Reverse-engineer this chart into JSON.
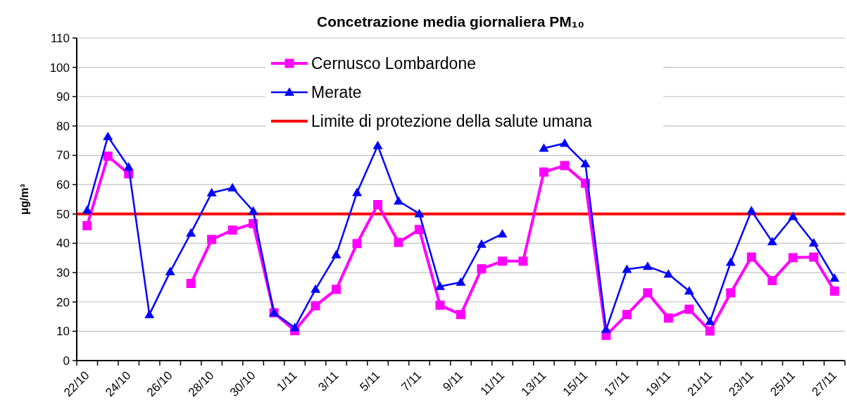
{
  "chart_data": {
    "type": "line",
    "title": "Concetrazione media giornaliera PM₁₀",
    "ylabel": "μg/m³",
    "categories": [
      "22/10",
      null,
      "24/10",
      null,
      "26/10",
      null,
      "28/10",
      null,
      "30/10",
      null,
      "1/11",
      null,
      "3/11",
      null,
      "5/11",
      null,
      "7/11",
      null,
      "9/11",
      null,
      "11/11",
      null,
      "13/11",
      null,
      "15/11",
      null,
      "17/11",
      null,
      "19/11",
      null,
      "21/11",
      null,
      "23/11",
      null,
      "25/11",
      null,
      "27/11"
    ],
    "series": [
      {
        "name": "Cernusco Lombardone",
        "color": "#ff00ff",
        "marker": "square",
        "values": [
          46,
          69.7,
          63.7,
          null,
          null,
          26.3,
          41.3,
          44.5,
          46.7,
          16.3,
          10.2,
          18.7,
          24.3,
          39.9,
          53.2,
          40.3,
          44.7,
          18.9,
          15.7,
          31.3,
          33.9,
          33.9,
          64.3,
          66.5,
          60.5,
          8.6,
          15.7,
          23.1,
          14.5,
          17.5,
          10.1,
          23.1,
          35.3,
          27.3,
          35.1,
          35.3,
          23.7
        ]
      },
      {
        "name": "Merate",
        "color": "#0000ff",
        "marker": "triangle",
        "values": [
          51.3,
          76.4,
          66,
          15.7,
          30.3,
          43.5,
          57.2,
          58.9,
          51,
          16.3,
          11.2,
          24.3,
          36.1,
          57.3,
          73.3,
          54.4,
          50.1,
          25.3,
          26.7,
          39.7,
          43.2,
          null,
          72.4,
          74.1,
          67.1,
          10.6,
          31.1,
          32.1,
          29.5,
          23.7,
          13.3,
          33.5,
          51.1,
          40.5,
          49.1,
          40.1,
          28.1
        ]
      }
    ],
    "ref_lines": [
      {
        "axis": "y",
        "value": 50,
        "label": "Limite di protezione della salute umana",
        "color": "#ff0000"
      }
    ],
    "ylim": [
      0,
      110
    ],
    "yticks": [
      0,
      10,
      20,
      30,
      40,
      50,
      60,
      70,
      80,
      90,
      100,
      110
    ],
    "grid": "y",
    "legend": "top"
  }
}
